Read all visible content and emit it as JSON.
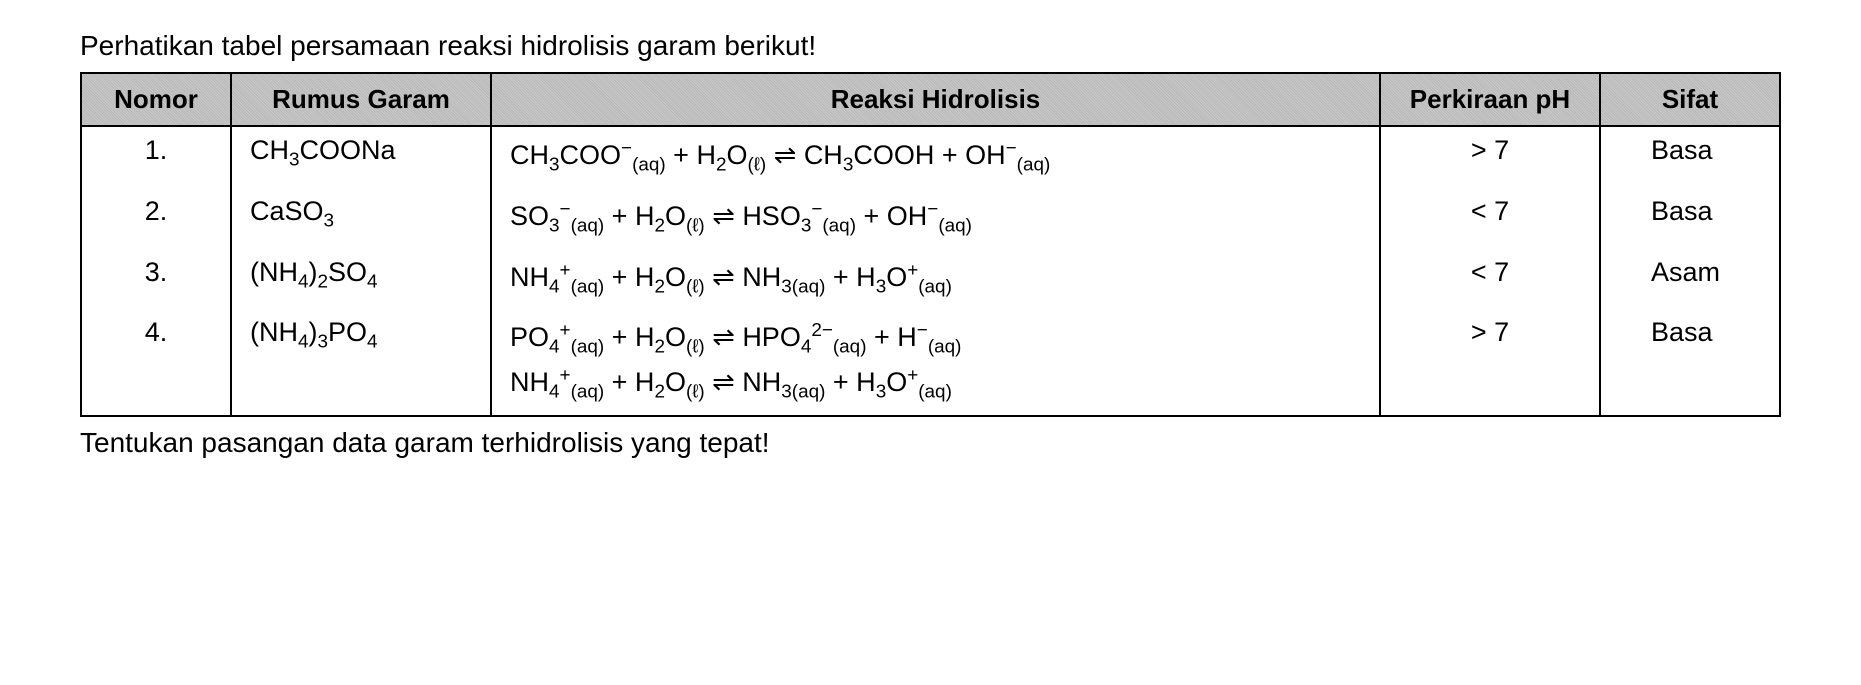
{
  "intro_text": "Perhatikan tabel persamaan reaksi hidrolisis garam berikut!",
  "outro_text": "Tentukan pasangan data garam terhidrolisis yang tepat!",
  "table": {
    "headers": {
      "nomor": "Nomor",
      "rumus": "Rumus Garam",
      "reaksi": "Reaksi Hidrolisis",
      "ph": "Perkiraan pH",
      "sifat": "Sifat"
    },
    "rows": [
      {
        "nomor": "1.",
        "rumus_html": "CH<sub>3</sub>COONa",
        "reaksi_html": "CH<sub>3</sub>COO<sup>−</sup><sub>(aq)</sub> + H<sub>2</sub>O<sub>(ℓ)</sub> ⇌ CH<sub>3</sub>COOH + OH<sup>−</sup><sub>(aq)</sub>",
        "ph": "> 7",
        "sifat": "Basa"
      },
      {
        "nomor": "2.",
        "rumus_html": "CaSO<sub>3</sub>",
        "reaksi_html": "SO<sub>3</sub><sup>−</sup><sub>(aq)</sub> + H<sub>2</sub>O<sub>(ℓ)</sub> ⇌ HSO<sub>3</sub><sup>−</sup><sub>(aq)</sub> + OH<sup>−</sup><sub>(aq)</sub>",
        "ph": "< 7",
        "sifat": "Basa"
      },
      {
        "nomor": "3.",
        "rumus_html": "(NH<sub>4</sub>)<sub>2</sub>SO<sub>4</sub>",
        "reaksi_html": "NH<sub>4</sub><sup>+</sup><sub>(aq)</sub> + H<sub>2</sub>O<sub>(ℓ)</sub> ⇌ NH<sub>3(aq)</sub> + H<sub>3</sub>O<sup>+</sup><sub>(aq)</sub>",
        "ph": "< 7",
        "sifat": "Asam"
      },
      {
        "nomor": "4.",
        "rumus_html": "(NH<sub>4</sub>)<sub>3</sub>PO<sub>4</sub>",
        "reaksi_html": "PO<sub>4</sub><sup>+</sup><sub>(aq)</sub> + H<sub>2</sub>O<sub>(ℓ)</sub> ⇌ HPO<sub>4</sub><sup>2−</sup><sub>(aq)</sub> + H<sup>−</sup><sub>(aq)</sub><br>NH<sub>4</sub><sup>+</sup><sub>(aq)</sub> + H<sub>2</sub>O<sub>(ℓ)</sub> ⇌ NH<sub>3(aq)</sub> + H<sub>3</sub>O<sup>+</sup><sub>(aq)</sub>",
        "ph": "> 7",
        "sifat": "Basa"
      }
    ]
  },
  "style": {
    "page_bg": "#ffffff",
    "text_color": "#000000",
    "border_color": "#000000",
    "header_bg": "#c0c0c0",
    "intro_fontsize": 28,
    "cell_fontsize": 27,
    "header_fontsize": 26,
    "font_family": "Arial",
    "border_width": 2,
    "col_widths": {
      "nomor": 150,
      "rumus": 260,
      "ph": 220,
      "sifat": 180
    }
  }
}
